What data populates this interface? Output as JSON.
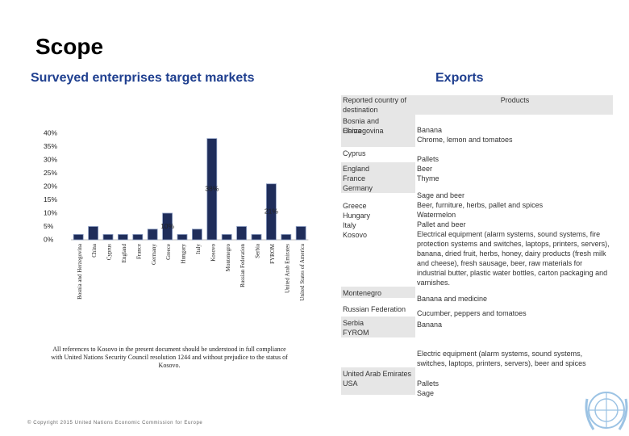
{
  "slide": {
    "title": "Scope",
    "subtitle_left": "Surveyed enterprises target markets",
    "subtitle_right": "Exports",
    "footnote": "All references to Kosovo in the present document should be understood in full compliance with United Nations Security Council resolution 1244 and without prejudice to the status of Kosovo.",
    "copyright": "© Copyright 2015 United Nations Economic Commission for Europe"
  },
  "chart_data": {
    "type": "bar",
    "categories": [
      "Bosnia and Herzegovina",
      "China",
      "Cyprus",
      "England",
      "France",
      "Germany",
      "Greece",
      "Hungary",
      "Italy",
      "Kosovo",
      "Montenegro",
      "Russian Federation",
      "Serbia",
      "FYROM",
      "United Arab Emirates",
      "United States of America"
    ],
    "values": [
      2,
      5,
      2,
      2,
      2,
      4,
      10,
      2,
      4,
      38,
      2,
      5,
      2,
      21,
      2,
      5
    ],
    "value_labels": [
      null,
      null,
      null,
      null,
      null,
      null,
      "10%",
      null,
      null,
      "38%",
      null,
      null,
      null,
      "21%",
      null,
      null
    ],
    "color": "#1f2d5a",
    "ylim": [
      0,
      40
    ],
    "yticks": [
      {
        "value": 0,
        "label": "0%"
      },
      {
        "value": 5,
        "label": "5%"
      },
      {
        "value": 10,
        "label": "10%"
      },
      {
        "value": 15,
        "label": "15%"
      },
      {
        "value": 20,
        "label": "20%"
      },
      {
        "value": 25,
        "label": "25%"
      },
      {
        "value": 30,
        "label": "30%"
      },
      {
        "value": 35,
        "label": "35%"
      },
      {
        "value": 40,
        "label": "40%"
      }
    ],
    "grid": false
  },
  "table": {
    "header": [
      "Reported country of destination",
      "Products"
    ],
    "rows": [
      {
        "countries": [
          "Bosnia and Herzegovina",
          "China"
        ],
        "products": [
          "Banana",
          "Chrome, lemon and tomatoes"
        ]
      },
      {
        "countries": [
          "Cyprus"
        ],
        "products": []
      },
      {
        "countries": [
          "England",
          "France",
          "Germany"
        ],
        "products": [
          "Pallets",
          "Beer",
          "Thyme"
        ]
      },
      {
        "countries": [
          "Greece",
          "Hungary",
          "Italy",
          "Kosovo"
        ],
        "products": [
          "Sage and beer",
          "Beer, furniture, herbs, pallet and spices",
          "Watermelon",
          "Pallet and beer",
          "Electrical equipment (alarm systems, sound systems, fire protection systems and switches, laptops, printers, servers), banana, dried fruit, herbs, honey, dairy products (fresh milk and cheese), fresh sausage, beer, raw materials for industrial butter, plastic water bottles, carton packaging and varnishes."
        ]
      },
      {
        "countries": [
          "Montenegro"
        ],
        "products": [
          "Banana and medicine"
        ]
      },
      {
        "countries": [
          "Russian Federation"
        ],
        "products": [
          "Cucumber, peppers and tomatoes"
        ]
      },
      {
        "countries": [
          "Serbia",
          "FYROM"
        ],
        "products": [
          "Banana"
        ]
      },
      {
        "countries": [],
        "products": [
          "Electric equipment (alarm systems, sound systems, switches, laptops, printers, servers), beer and spices"
        ]
      },
      {
        "countries": [
          "United Arab Emirates",
          "USA"
        ],
        "products": [
          "Pallets",
          "Sage"
        ]
      }
    ]
  }
}
